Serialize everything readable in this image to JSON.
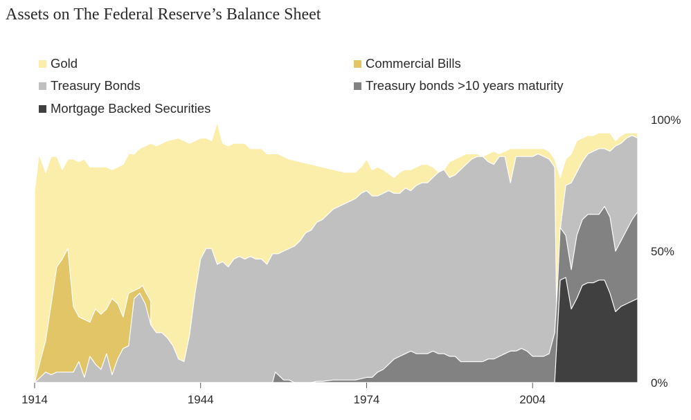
{
  "chart_data": {
    "type": "area",
    "stacked": true,
    "title": "Assets on The Federal Reserve’s Balance Sheet",
    "xlabel": "",
    "ylabel": "",
    "xlim": [
      1914,
      2023
    ],
    "ylim": [
      0,
      100
    ],
    "x_ticks": [
      1914,
      1944,
      1974,
      2004
    ],
    "y_ticks": [
      {
        "v": 100,
        "label": "100%"
      },
      {
        "v": 50,
        "label": "50%"
      },
      {
        "v": 0,
        "label": "0%"
      }
    ],
    "legend_position": "top",
    "stack_order": [
      "Mortgage Backed Securities",
      "Treasury bonds >10 years maturity",
      "Treasury Bonds",
      "Commercial Bills",
      "Gold"
    ],
    "series": [
      {
        "name": "Gold",
        "color": "#fbedaa",
        "cumulative": [
          [
            1914,
            73
          ],
          [
            1914.8,
            87
          ],
          [
            1916,
            80
          ],
          [
            1917,
            86
          ],
          [
            1918,
            86
          ],
          [
            1919,
            81
          ],
          [
            1920,
            85
          ],
          [
            1921,
            85
          ],
          [
            1922,
            84
          ],
          [
            1923,
            85
          ],
          [
            1924,
            82
          ],
          [
            1926,
            82
          ],
          [
            1927,
            82
          ],
          [
            1928,
            81
          ],
          [
            1929,
            82
          ],
          [
            1930,
            83
          ],
          [
            1931,
            87
          ],
          [
            1932,
            87
          ],
          [
            1933,
            89
          ],
          [
            1935,
            91
          ],
          [
            1936,
            90
          ],
          [
            1937,
            91
          ],
          [
            1938,
            92
          ],
          [
            1940,
            93
          ],
          [
            1942,
            91
          ],
          [
            1943,
            92
          ],
          [
            1944,
            93
          ],
          [
            1945,
            93
          ],
          [
            1946,
            92
          ],
          [
            1947,
            99
          ],
          [
            1948,
            91
          ],
          [
            1949,
            90
          ],
          [
            1950,
            91
          ],
          [
            1952,
            91
          ],
          [
            1953,
            89
          ],
          [
            1954,
            89
          ],
          [
            1955,
            89
          ],
          [
            1956,
            87
          ],
          [
            1958,
            87
          ],
          [
            1960,
            85
          ],
          [
            1962,
            84
          ],
          [
            1964,
            83
          ],
          [
            1966,
            82
          ],
          [
            1968,
            81
          ],
          [
            1970,
            80
          ],
          [
            1972,
            80
          ],
          [
            1973,
            82
          ],
          [
            1974,
            85
          ],
          [
            1975,
            81
          ],
          [
            1976,
            82
          ],
          [
            1977,
            81
          ],
          [
            1979,
            78
          ],
          [
            1980,
            80
          ],
          [
            1981,
            81
          ],
          [
            1982,
            81
          ],
          [
            1983,
            82
          ],
          [
            1984,
            83
          ],
          [
            1985,
            83
          ],
          [
            1986,
            82
          ],
          [
            1987,
            80
          ],
          [
            1988,
            81
          ],
          [
            1989,
            84
          ],
          [
            1990,
            85
          ],
          [
            1991,
            86
          ],
          [
            1992,
            87
          ],
          [
            1993,
            87
          ],
          [
            1994,
            87
          ],
          [
            1995,
            86
          ],
          [
            1996,
            87
          ],
          [
            1997,
            88
          ],
          [
            1998,
            87
          ],
          [
            1999,
            88
          ],
          [
            2000,
            89
          ],
          [
            2001,
            89
          ],
          [
            2002,
            89
          ],
          [
            2003,
            89
          ],
          [
            2004,
            89
          ],
          [
            2005,
            89
          ],
          [
            2006,
            89
          ],
          [
            2007,
            88
          ],
          [
            2008,
            85
          ],
          [
            2009,
            78
          ],
          [
            2010,
            85
          ],
          [
            2011,
            87
          ],
          [
            2012,
            92
          ],
          [
            2013,
            93
          ],
          [
            2014,
            94
          ],
          [
            2015,
            94
          ],
          [
            2016,
            95
          ],
          [
            2017,
            95
          ],
          [
            2018,
            95
          ],
          [
            2019,
            92
          ],
          [
            2020,
            94
          ],
          [
            2021,
            95
          ],
          [
            2022,
            95
          ],
          [
            2023,
            95
          ]
        ]
      },
      {
        "name": "Commercial Bills",
        "color": "#e2c566",
        "cumulative": [
          [
            1914,
            0
          ],
          [
            1916,
            16
          ],
          [
            1917,
            30
          ],
          [
            1918,
            44
          ],
          [
            1919,
            47
          ],
          [
            1920,
            51
          ],
          [
            1921,
            29
          ],
          [
            1922,
            25
          ],
          [
            1923,
            24
          ],
          [
            1924,
            23
          ],
          [
            1925,
            28
          ],
          [
            1926,
            26
          ],
          [
            1927,
            28
          ],
          [
            1928,
            32
          ],
          [
            1929,
            30
          ],
          [
            1930,
            25
          ],
          [
            1931,
            34
          ],
          [
            1932,
            35
          ],
          [
            1933,
            36
          ],
          [
            1933.5,
            37
          ],
          [
            1934.2,
            34
          ],
          [
            1935,
            31
          ]
        ]
      },
      {
        "name": "Treasury Bonds",
        "color": "#c0c0c0",
        "cumulative": [
          [
            1914,
            0
          ],
          [
            1916,
            4
          ],
          [
            1917,
            3
          ],
          [
            1918,
            4
          ],
          [
            1919,
            4
          ],
          [
            1920,
            4
          ],
          [
            1921,
            4
          ],
          [
            1922,
            8
          ],
          [
            1923,
            2
          ],
          [
            1924,
            10
          ],
          [
            1925,
            7
          ],
          [
            1926,
            5
          ],
          [
            1927,
            11
          ],
          [
            1928,
            3
          ],
          [
            1929,
            9
          ],
          [
            1930,
            13
          ],
          [
            1931,
            14
          ],
          [
            1932,
            32
          ],
          [
            1933,
            34
          ],
          [
            1934,
            30
          ],
          [
            1935,
            22
          ],
          [
            1936,
            19
          ],
          [
            1937,
            19
          ],
          [
            1938,
            17
          ],
          [
            1939,
            14
          ],
          [
            1940,
            9
          ],
          [
            1941,
            8
          ],
          [
            1942,
            18
          ],
          [
            1943,
            34
          ],
          [
            1944,
            47
          ],
          [
            1945,
            51
          ],
          [
            1946,
            51
          ],
          [
            1947,
            45
          ],
          [
            1948,
            46
          ],
          [
            1949,
            44
          ],
          [
            1950,
            47
          ],
          [
            1951,
            48
          ],
          [
            1952,
            47
          ],
          [
            1953,
            48
          ],
          [
            1954,
            47
          ],
          [
            1955,
            47
          ],
          [
            1956,
            45
          ],
          [
            1957,
            49
          ],
          [
            1958,
            49
          ],
          [
            1959,
            50
          ],
          [
            1960,
            51
          ],
          [
            1961,
            52
          ],
          [
            1962,
            54
          ],
          [
            1963,
            57
          ],
          [
            1964,
            58
          ],
          [
            1965,
            61
          ],
          [
            1966,
            62
          ],
          [
            1967,
            64
          ],
          [
            1968,
            66
          ],
          [
            1969,
            67
          ],
          [
            1970,
            68
          ],
          [
            1971,
            69
          ],
          [
            1972,
            70
          ],
          [
            1973,
            72
          ],
          [
            1974,
            73
          ],
          [
            1975,
            71
          ],
          [
            1976,
            71
          ],
          [
            1977,
            72
          ],
          [
            1978,
            73
          ],
          [
            1979,
            72
          ],
          [
            1980,
            72
          ],
          [
            1981,
            74
          ],
          [
            1982,
            73
          ],
          [
            1983,
            75
          ],
          [
            1984,
            76
          ],
          [
            1985,
            76
          ],
          [
            1986,
            78
          ],
          [
            1987,
            80
          ],
          [
            1988,
            81
          ],
          [
            1989,
            78
          ],
          [
            1990,
            79
          ],
          [
            1991,
            81
          ],
          [
            1992,
            83
          ],
          [
            1993,
            85
          ],
          [
            1994,
            86
          ],
          [
            1995,
            86
          ],
          [
            1996,
            84
          ],
          [
            1997,
            83
          ],
          [
            1998,
            86
          ],
          [
            1999,
            86
          ],
          [
            2000,
            76
          ],
          [
            2001,
            86
          ],
          [
            2002,
            86
          ],
          [
            2003,
            86
          ],
          [
            2004,
            86
          ],
          [
            2005,
            87
          ],
          [
            2006,
            86
          ],
          [
            2007,
            85
          ],
          [
            2008,
            82
          ],
          [
            2008.5,
            3
          ],
          [
            2009,
            58
          ],
          [
            2010,
            75
          ],
          [
            2011,
            76
          ],
          [
            2012,
            80
          ],
          [
            2013,
            84
          ],
          [
            2014,
            87
          ],
          [
            2015,
            88
          ],
          [
            2016,
            89
          ],
          [
            2017,
            89
          ],
          [
            2018,
            88
          ],
          [
            2019,
            90
          ],
          [
            2020,
            91
          ],
          [
            2021,
            93
          ],
          [
            2022,
            94
          ],
          [
            2023,
            93
          ]
        ]
      },
      {
        "name": "Treasury bonds >10 years maturity",
        "color": "#828282",
        "cumulative": [
          [
            1914,
            0
          ],
          [
            1957,
            0
          ],
          [
            1957.5,
            4
          ],
          [
            1958,
            3
          ],
          [
            1959,
            1
          ],
          [
            1960,
            1
          ],
          [
            1961,
            0
          ],
          [
            1962,
            0
          ],
          [
            1963,
            0
          ],
          [
            1964,
            0
          ],
          [
            1965,
            0.5
          ],
          [
            1966,
            0.5
          ],
          [
            1968,
            1
          ],
          [
            1970,
            1
          ],
          [
            1971,
            1
          ],
          [
            1972,
            1
          ],
          [
            1973,
            1.5
          ],
          [
            1974,
            2
          ],
          [
            1975,
            2
          ],
          [
            1976,
            4
          ],
          [
            1977,
            5
          ],
          [
            1978,
            7
          ],
          [
            1979,
            9
          ],
          [
            1980,
            10
          ],
          [
            1981,
            11
          ],
          [
            1982,
            12
          ],
          [
            1983,
            11
          ],
          [
            1984,
            11
          ],
          [
            1985,
            11
          ],
          [
            1986,
            12
          ],
          [
            1987,
            11
          ],
          [
            1988,
            11
          ],
          [
            1989,
            10
          ],
          [
            1990,
            10
          ],
          [
            1991,
            8
          ],
          [
            1992,
            8
          ],
          [
            1993,
            8
          ],
          [
            1994,
            8
          ],
          [
            1995,
            8
          ],
          [
            1996,
            9
          ],
          [
            1997,
            9
          ],
          [
            1998,
            10
          ],
          [
            1999,
            11
          ],
          [
            2000,
            12
          ],
          [
            2001,
            12
          ],
          [
            2002,
            13
          ],
          [
            2003,
            12
          ],
          [
            2004,
            10
          ],
          [
            2005,
            10
          ],
          [
            2006,
            10
          ],
          [
            2007,
            11
          ],
          [
            2008,
            19
          ],
          [
            2008.5,
            36
          ],
          [
            2009,
            59
          ],
          [
            2010,
            56
          ],
          [
            2011,
            43
          ],
          [
            2012,
            56
          ],
          [
            2013,
            62
          ],
          [
            2014,
            64
          ],
          [
            2015,
            64
          ],
          [
            2016,
            64
          ],
          [
            2017,
            67
          ],
          [
            2018,
            63
          ],
          [
            2019,
            50
          ],
          [
            2020,
            54
          ],
          [
            2021,
            58
          ],
          [
            2022,
            62
          ],
          [
            2023,
            65
          ]
        ]
      },
      {
        "name": "Mortgage Backed Securities",
        "color": "#404040",
        "cumulative": [
          [
            1914,
            0
          ],
          [
            2008,
            0
          ],
          [
            2009,
            39
          ],
          [
            2010,
            40
          ],
          [
            2011,
            28
          ],
          [
            2012,
            32
          ],
          [
            2013,
            37
          ],
          [
            2014,
            38
          ],
          [
            2015,
            38
          ],
          [
            2016,
            39
          ],
          [
            2017,
            39
          ],
          [
            2018,
            34
          ],
          [
            2019,
            27
          ],
          [
            2020,
            29
          ],
          [
            2021,
            30
          ],
          [
            2022,
            31
          ],
          [
            2023,
            32
          ]
        ]
      }
    ]
  }
}
